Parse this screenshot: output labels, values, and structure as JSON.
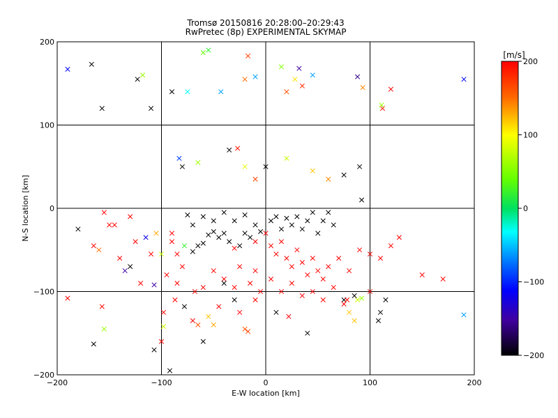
{
  "chart_data": {
    "type": "scatter",
    "title": "Tromsø 20150816 20:28:00–20:29:43",
    "subtitle": "RwPretec (8p) EXPERIMENTAL SKYMAP",
    "xlabel": "E-W location [km]",
    "ylabel": "N-S location [km]",
    "xlim": [
      -200,
      200
    ],
    "ylim": [
      -200,
      200
    ],
    "x_ticks": [
      "−200",
      "−100",
      "0",
      "100",
      "200"
    ],
    "y_ticks": [
      "−200",
      "−100",
      "0",
      "100",
      "200"
    ],
    "grid": true,
    "colorbar": {
      "label": "[m/s]",
      "range": [
        -200,
        200
      ],
      "tick_labels": [
        "200",
        "100",
        "0",
        "−100",
        "−200"
      ]
    },
    "markers": [
      "dot",
      "x"
    ],
    "series": [
      {
        "points": [
          [
            -190,
            167,
            -110
          ],
          [
            -167,
            173,
            -200
          ],
          [
            -123,
            155,
            -200
          ],
          [
            -118,
            160,
            60
          ],
          [
            -90,
            140,
            -200
          ],
          [
            -75,
            140,
            -30
          ],
          [
            -60,
            187,
            40
          ],
          [
            -55,
            190,
            20
          ],
          [
            -43,
            140,
            -60
          ],
          [
            -20,
            155,
            150
          ],
          [
            -17,
            183,
            170
          ],
          [
            -10,
            158,
            -60
          ],
          [
            15,
            170,
            50
          ],
          [
            20,
            140,
            160
          ],
          [
            28,
            155,
            110
          ],
          [
            35,
            147,
            180
          ],
          [
            32,
            168,
            -150
          ],
          [
            45,
            160,
            -60
          ],
          [
            88,
            158,
            -160
          ],
          [
            93,
            145,
            140
          ],
          [
            112,
            120,
            190
          ],
          [
            111,
            124,
            60
          ],
          [
            120,
            143,
            200
          ],
          [
            190,
            155,
            -110
          ],
          [
            -110,
            120,
            -200
          ],
          [
            -157,
            120,
            -200
          ],
          [
            -80,
            50,
            -200
          ],
          [
            -83,
            60,
            -90
          ],
          [
            -65,
            55,
            60
          ],
          [
            -35,
            70,
            -200
          ],
          [
            -27,
            72,
            190
          ],
          [
            -20,
            50,
            90
          ],
          [
            -10,
            35,
            170
          ],
          [
            0,
            50,
            -200
          ],
          [
            20,
            60,
            80
          ],
          [
            45,
            45,
            120
          ],
          [
            60,
            35,
            140
          ],
          [
            75,
            40,
            -200
          ],
          [
            90,
            50,
            -200
          ],
          [
            92,
            10,
            -200
          ],
          [
            -180,
            -25,
            -200
          ],
          [
            -155,
            -5,
            200
          ],
          [
            -145,
            -20,
            200
          ],
          [
            -165,
            -45,
            200
          ],
          [
            -160,
            -50,
            150
          ],
          [
            -150,
            -20,
            200
          ],
          [
            -125,
            -40,
            200
          ],
          [
            -110,
            -55,
            200
          ],
          [
            -115,
            -35,
            -120
          ],
          [
            -105,
            -30,
            130
          ],
          [
            -100,
            -55,
            80
          ],
          [
            -90,
            -40,
            200
          ],
          [
            -78,
            -45,
            20
          ],
          [
            -70,
            -52,
            -200
          ],
          [
            -65,
            -45,
            -200
          ],
          [
            -60,
            -42,
            -200
          ],
          [
            -55,
            -32,
            -200
          ],
          [
            -50,
            -28,
            -200
          ],
          [
            -45,
            -35,
            -200
          ],
          [
            -40,
            -30,
            -200
          ],
          [
            -35,
            -40,
            -200
          ],
          [
            -30,
            -48,
            200
          ],
          [
            -25,
            -45,
            -200
          ],
          [
            -20,
            -30,
            -200
          ],
          [
            -15,
            -35,
            -200
          ],
          [
            -10,
            -40,
            200
          ],
          [
            -5,
            -28,
            -200
          ],
          [
            -75,
            -8,
            -200
          ],
          [
            -70,
            -20,
            -200
          ],
          [
            -60,
            -10,
            -200
          ],
          [
            -50,
            -15,
            -200
          ],
          [
            -40,
            -5,
            -200
          ],
          [
            -30,
            -15,
            -200
          ],
          [
            -20,
            -8,
            -200
          ],
          [
            -10,
            -20,
            -200
          ],
          [
            5,
            -15,
            -200
          ],
          [
            10,
            -10,
            -200
          ],
          [
            15,
            -25,
            -200
          ],
          [
            20,
            -12,
            -200
          ],
          [
            25,
            -20,
            -200
          ],
          [
            30,
            -10,
            -200
          ],
          [
            35,
            -25,
            -200
          ],
          [
            40,
            -15,
            -200
          ],
          [
            45,
            -5,
            -200
          ],
          [
            50,
            -30,
            -200
          ],
          [
            55,
            -15,
            -200
          ],
          [
            60,
            -5,
            -200
          ],
          [
            65,
            -20,
            -200
          ],
          [
            0,
            -30,
            200
          ],
          [
            5,
            -45,
            200
          ],
          [
            10,
            -55,
            200
          ],
          [
            15,
            -40,
            200
          ],
          [
            20,
            -60,
            200
          ],
          [
            25,
            -70,
            200
          ],
          [
            30,
            -50,
            200
          ],
          [
            35,
            -65,
            200
          ],
          [
            40,
            -80,
            200
          ],
          [
            45,
            -60,
            200
          ],
          [
            50,
            -75,
            200
          ],
          [
            55,
            -85,
            200
          ],
          [
            60,
            -70,
            200
          ],
          [
            70,
            -60,
            200
          ],
          [
            80,
            -75,
            200
          ],
          [
            90,
            -50,
            200
          ],
          [
            100,
            -55,
            200
          ],
          [
            110,
            -60,
            200
          ],
          [
            120,
            -45,
            200
          ],
          [
            128,
            -35,
            200
          ],
          [
            -130,
            -70,
            -200
          ],
          [
            -140,
            -60,
            200
          ],
          [
            -120,
            -90,
            200
          ],
          [
            -95,
            -80,
            200
          ],
          [
            -85,
            -90,
            200
          ],
          [
            -80,
            -70,
            200
          ],
          [
            -60,
            -95,
            200
          ],
          [
            -50,
            -75,
            200
          ],
          [
            -40,
            -85,
            200
          ],
          [
            -30,
            -95,
            200
          ],
          [
            -25,
            -70,
            200
          ],
          [
            -15,
            -90,
            200
          ],
          [
            -10,
            -75,
            200
          ],
          [
            -5,
            -100,
            200
          ],
          [
            5,
            -85,
            200
          ],
          [
            15,
            -100,
            200
          ],
          [
            25,
            -90,
            200
          ],
          [
            35,
            -105,
            200
          ],
          [
            45,
            -100,
            200
          ],
          [
            55,
            -110,
            200
          ],
          [
            65,
            -95,
            200
          ],
          [
            75,
            -110,
            -200
          ],
          [
            85,
            -105,
            -200
          ],
          [
            100,
            -100,
            200
          ],
          [
            115,
            -110,
            -200
          ],
          [
            110,
            -125,
            -200
          ],
          [
            108,
            -135,
            -200
          ],
          [
            -155,
            -145,
            60
          ],
          [
            -157,
            -118,
            200
          ],
          [
            -165,
            -163,
            -200
          ],
          [
            -190,
            -108,
            200
          ],
          [
            -135,
            -75,
            -150
          ],
          [
            -107,
            -92,
            -150
          ],
          [
            -98,
            -125,
            200
          ],
          [
            -98,
            -142,
            80
          ],
          [
            -65,
            -140,
            160
          ],
          [
            -55,
            -130,
            120
          ],
          [
            -50,
            -140,
            130
          ],
          [
            -45,
            -118,
            200
          ],
          [
            -30,
            -110,
            -200
          ],
          [
            -25,
            -125,
            200
          ],
          [
            -17,
            -148,
            170
          ],
          [
            -10,
            -110,
            200
          ],
          [
            -20,
            -145,
            160
          ],
          [
            -40,
            -90,
            -200
          ],
          [
            -70,
            -135,
            200
          ],
          [
            75,
            -115,
            200
          ],
          [
            78,
            -110,
            200
          ],
          [
            80,
            -125,
            120
          ],
          [
            85,
            -135,
            120
          ],
          [
            88,
            -110,
            80
          ],
          [
            92,
            -108,
            60
          ],
          [
            190,
            -128,
            -60
          ],
          [
            170,
            -85,
            200
          ],
          [
            -68,
            -100,
            200
          ],
          [
            -87,
            -110,
            200
          ],
          [
            -78,
            -118,
            -200
          ],
          [
            -100,
            -160,
            200
          ],
          [
            -107,
            -170,
            -200
          ],
          [
            -92,
            -195,
            -200
          ],
          [
            150,
            -80,
            200
          ],
          [
            -60,
            -160,
            -200
          ],
          [
            10,
            -125,
            -200
          ],
          [
            22,
            -130,
            200
          ],
          [
            40,
            -150,
            -200
          ],
          [
            -130,
            -10,
            200
          ],
          [
            -85,
            -55,
            200
          ],
          [
            -90,
            -30,
            200
          ]
        ]
      }
    ]
  }
}
